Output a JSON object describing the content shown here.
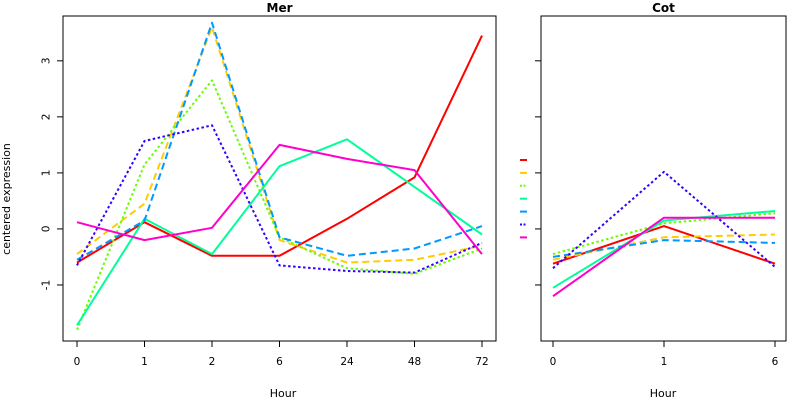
{
  "chart_data": [
    {
      "type": "line",
      "title": "Mer",
      "xlabel": "Hour",
      "ylabel": "centered expression",
      "categories": [
        "0",
        "1",
        "2",
        "6",
        "24",
        "48",
        "72"
      ],
      "ylim": [
        -2.0,
        3.8
      ],
      "yticks": [
        -1,
        0,
        1,
        2,
        3
      ],
      "series": [
        {
          "color": "#FF0000",
          "dash": "solid",
          "values": [
            -0.6,
            0.12,
            -0.48,
            -0.48,
            0.18,
            0.92,
            3.45
          ]
        },
        {
          "color": "#FFCC00",
          "dash": "dashed",
          "values": [
            -0.45,
            0.45,
            3.6,
            -0.2,
            -0.6,
            -0.55,
            -0.3
          ]
        },
        {
          "color": "#66FF00",
          "dash": "dotted",
          "values": [
            -1.8,
            1.15,
            2.65,
            -0.15,
            -0.7,
            -0.8,
            -0.35
          ]
        },
        {
          "color": "#00FF99",
          "dash": "solid",
          "values": [
            -1.72,
            0.18,
            -0.45,
            1.12,
            1.6,
            0.75,
            -0.1
          ]
        },
        {
          "color": "#0099FF",
          "dash": "dashed",
          "values": [
            -0.55,
            0.15,
            3.68,
            -0.15,
            -0.48,
            -0.35,
            0.05
          ]
        },
        {
          "color": "#3300FF",
          "dash": "dotted",
          "values": [
            -0.65,
            1.57,
            1.85,
            -0.65,
            -0.75,
            -0.78,
            -0.25
          ]
        },
        {
          "color": "#FF00CC",
          "dash": "solid",
          "values": [
            0.12,
            -0.2,
            0.02,
            1.5,
            1.25,
            1.05,
            -0.45
          ]
        }
      ]
    },
    {
      "type": "line",
      "title": "Cot",
      "xlabel": "Hour",
      "ylabel": "",
      "categories": [
        "0",
        "1",
        "6"
      ],
      "ylim": [
        -2.0,
        3.8
      ],
      "yticks": [
        -1,
        0,
        1,
        2,
        3
      ],
      "legend_position": "left",
      "series": [
        {
          "color": "#FF0000",
          "dash": "solid",
          "values": [
            -0.62,
            0.05,
            -0.62
          ]
        },
        {
          "color": "#FFCC00",
          "dash": "dashed",
          "values": [
            -0.55,
            -0.15,
            -0.1
          ]
        },
        {
          "color": "#66FF00",
          "dash": "dotted",
          "values": [
            -0.45,
            0.1,
            0.28
          ]
        },
        {
          "color": "#00FF99",
          "dash": "solid",
          "values": [
            -1.05,
            0.15,
            0.32
          ]
        },
        {
          "color": "#0099FF",
          "dash": "dashed",
          "values": [
            -0.5,
            -0.2,
            -0.25
          ]
        },
        {
          "color": "#3300FF",
          "dash": "dotted",
          "values": [
            -0.7,
            1.02,
            -0.68
          ]
        },
        {
          "color": "#FF00CC",
          "dash": "solid",
          "values": [
            -1.2,
            0.2,
            0.2
          ]
        }
      ]
    }
  ]
}
